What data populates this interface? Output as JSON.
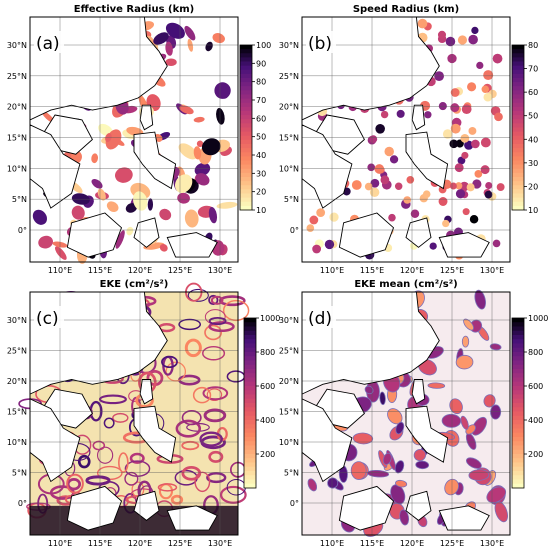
{
  "figure": {
    "colors": {
      "land": "#ffffff",
      "coast": "#000000",
      "ocean_c": "#f4e3b0",
      "ocean_d": "#f6ebee"
    },
    "panels": [
      {
        "key": "a",
        "label": "(a)",
        "title": "Effective Radius (km)",
        "colorbar": {
          "min": 10,
          "max": 100,
          "ticks": [
            "100",
            "90",
            "80",
            "70",
            "60",
            "50",
            "40",
            "30",
            "20",
            "10"
          ],
          "scale": "magma_r"
        },
        "feature": "eddy-patches"
      },
      {
        "key": "b",
        "label": "(b)",
        "title": "Speed Radius (km)",
        "colorbar": {
          "min": 10,
          "max": 80,
          "ticks": [
            "80",
            "70",
            "60",
            "50",
            "40",
            "30",
            "20",
            "10"
          ],
          "scale": "magma_r"
        },
        "feature": "eddy-circles"
      },
      {
        "key": "c",
        "label": "(c)",
        "title": "EKE (cm²/s²)",
        "colorbar": {
          "min": 0,
          "max": 1000,
          "ticks": [
            "1000",
            "800",
            "600",
            "400",
            "200"
          ],
          "scale": "magma_r"
        },
        "feature": "eke-field"
      },
      {
        "key": "d",
        "label": "(d)",
        "title": "EKE mean (cm²/s²)",
        "colorbar": {
          "min": 0,
          "max": 1000,
          "ticks": [
            "1000",
            "800",
            "600",
            "400",
            "200"
          ],
          "scale": "magma_r"
        },
        "feature": "eke-mean-patches"
      }
    ],
    "lat_labels": [
      "30°N",
      "25°N",
      "20°N",
      "15°N",
      "10°N",
      "5°N",
      "0°"
    ],
    "lon_labels": [
      "110°E",
      "115°E",
      "120°E",
      "125°E",
      "130°E"
    ]
  }
}
